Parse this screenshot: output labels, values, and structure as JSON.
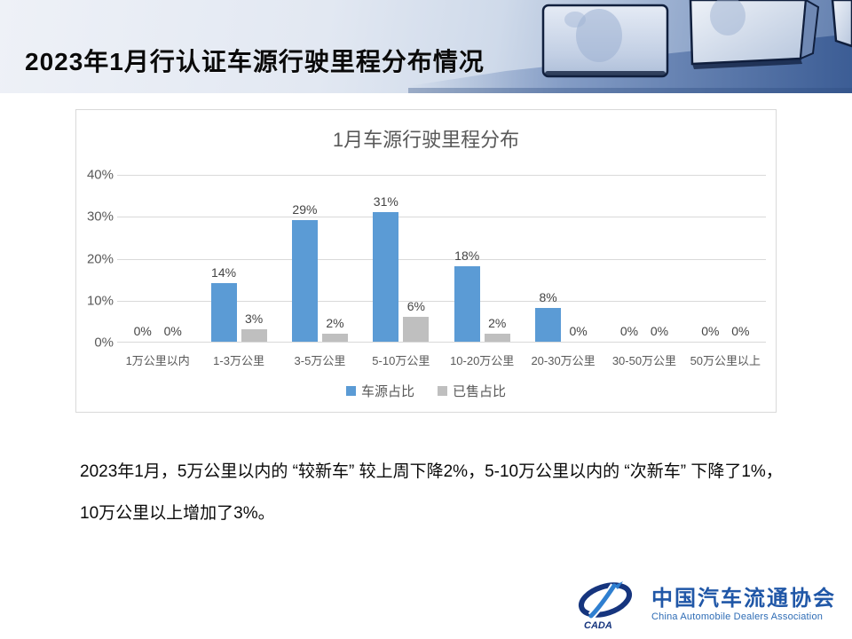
{
  "header": {
    "title": "2023年1月行认证车源行驶里程分布情况"
  },
  "chart_data": {
    "type": "bar",
    "title": "1月车源行驶里程分布",
    "categories": [
      "1万公里以内",
      "1-3万公里",
      "3-5万公里",
      "5-10万公里",
      "10-20万公里",
      "20-30万公里",
      "30-50万公里",
      "50万公里以上"
    ],
    "series": [
      {
        "name": "车源占比",
        "color": "#5B9BD5",
        "values": [
          0,
          14,
          29,
          31,
          18,
          8,
          0,
          0
        ]
      },
      {
        "name": "已售占比",
        "color": "#BFBFBF",
        "values": [
          0,
          3,
          2,
          6,
          2,
          0,
          0,
          0
        ]
      }
    ],
    "ylim": [
      0,
      40
    ],
    "yticks": [
      0,
      10,
      20,
      30,
      40
    ],
    "ytick_suffix": "%",
    "label_suffix": "%",
    "grid": true,
    "legend_position": "bottom"
  },
  "body": {
    "summary": "2023年1月，5万公里以内的 “较新车” 较上周下降2%，5-10万公里以内的 “次新车” 下降了1%，10万公里以上增加了3%。"
  },
  "logo": {
    "emblem_text": "CADA",
    "name_cn": "中国汽车流通协会",
    "name_en": "China Automobile Dealers Association",
    "brand_color": "#2057a7"
  }
}
